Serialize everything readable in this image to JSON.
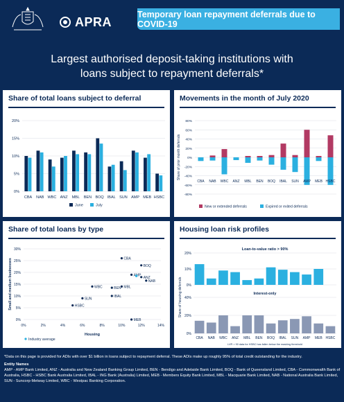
{
  "header": {
    "logo_text": "APRA",
    "banner": "Temporary loan repayment deferrals due to COVID-19"
  },
  "headline": {
    "line1": "Largest authorised deposit-taking institutions with",
    "line2": "loans subject to repayment deferrals*"
  },
  "panels": {
    "share_total": {
      "title": "Share of total loans subject to deferral"
    },
    "movements": {
      "title": "Movements in the month of July 2020"
    },
    "by_type": {
      "title": "Share of total loans by type"
    },
    "risk": {
      "title": "Housing loan risk profiles"
    }
  },
  "colors": {
    "navy": "#0b2a57",
    "cyan": "#2bb0e0",
    "rose": "#b23a63",
    "grey": "#8a98b4",
    "grid": "#d9dde6"
  },
  "chart_data": [
    {
      "type": "bar",
      "title": "Share of total loans subject to deferral",
      "categories": [
        "CBA",
        "NAB",
        "WBC",
        "ANZ",
        "MBL",
        "BEN",
        "BOQ",
        "IBAL",
        "SUN",
        "AMP",
        "MEB",
        "HSBC"
      ],
      "series": [
        {
          "name": "June",
          "values": [
            10,
            11.5,
            9,
            9.5,
            11.5,
            11,
            15,
            7,
            8.5,
            11.5,
            9.5,
            5
          ]
        },
        {
          "name": "July",
          "values": [
            9.5,
            11,
            7,
            10,
            10.5,
            10.5,
            13.5,
            7.5,
            6,
            11,
            10.5,
            4.5
          ]
        }
      ],
      "ylim": [
        0,
        20
      ],
      "yticks": [
        "0%",
        "5%",
        "10%",
        "15%",
        "20%"
      ],
      "legend": "bottom"
    },
    {
      "type": "bar",
      "title": "Movements in the month of July 2020",
      "categories": [
        "CBA",
        "NAB",
        "WBC",
        "ANZ",
        "MBL",
        "BEN",
        "BOQ",
        "IBAL",
        "SUN",
        "AMP",
        "MEB",
        "HSBC"
      ],
      "ylabel": "Share of prior month deferrals",
      "series": [
        {
          "name": "New or extended deferrals",
          "values": [
            0,
            4,
            18,
            0,
            3,
            3,
            5,
            30,
            5,
            60,
            3,
            48
          ]
        },
        {
          "name": "Expired or exited deferrals",
          "values": [
            -8,
            -7,
            -37,
            -6,
            -12,
            -7,
            -16,
            -27,
            -32,
            -60,
            -8,
            -60
          ]
        }
      ],
      "ylim": [
        -80,
        80
      ],
      "yticks": [
        "-80%",
        "-60%",
        "-40%",
        "-20%",
        "0%",
        "20%",
        "40%",
        "60%",
        "80%"
      ],
      "legend": "bottom"
    },
    {
      "type": "scatter",
      "title": "Share of total loans by type",
      "xlabel": "Housing",
      "ylabel": "Small and medium businesses",
      "xlim": [
        0,
        14
      ],
      "ylim": [
        0,
        30
      ],
      "xticks": [
        "0%",
        "2%",
        "4%",
        "6%",
        "8%",
        "10%",
        "12%",
        "14%"
      ],
      "yticks": [
        "0%",
        "5%",
        "10%",
        "15%",
        "20%",
        "25%",
        "30%"
      ],
      "points": [
        {
          "label": "CBA",
          "x": 10,
          "y": 26
        },
        {
          "label": "BOQ",
          "x": 12,
          "y": 23
        },
        {
          "label": "AMP",
          "x": 11,
          "y": 19
        },
        {
          "label": "ANZ",
          "x": 12,
          "y": 18
        },
        {
          "label": "NAB",
          "x": 12.5,
          "y": 16.5
        },
        {
          "label": "MBL",
          "x": 10,
          "y": 14
        },
        {
          "label": "WBC",
          "x": 7,
          "y": 14
        },
        {
          "label": "BEN",
          "x": 9,
          "y": 13.5
        },
        {
          "label": "IBAL",
          "x": 9,
          "y": 10
        },
        {
          "label": "SUN",
          "x": 6,
          "y": 9
        },
        {
          "label": "HSBC",
          "x": 5,
          "y": 6
        },
        {
          "label": "MEB",
          "x": 11,
          "y": 0
        }
      ],
      "industry_average": {
        "label": "Industry average",
        "x": 11.5,
        "y": 18.5
      }
    },
    {
      "type": "bar",
      "title": "Loan-to-value ratio > 90%",
      "categories": [
        "CBA",
        "NAB",
        "WBC",
        "ANZ",
        "MBL",
        "BEN",
        "BOQ",
        "IBAL",
        "SUN",
        "AMP",
        "MEB",
        "HSBC"
      ],
      "values": [
        13,
        4,
        9,
        8,
        3,
        4,
        11,
        9.5,
        8,
        6.5,
        10,
        0
      ],
      "ylim": [
        0,
        20
      ],
      "yticks": [
        "0%",
        "10%",
        "20%"
      ]
    },
    {
      "type": "bar",
      "title": "Interest-only",
      "categories": [
        "CBA",
        "NAB",
        "WBC",
        "ANZ",
        "MBL",
        "BEN",
        "BOQ",
        "IBAL",
        "SUN",
        "AMP",
        "MEB",
        "HSBC"
      ],
      "values": [
        14,
        12,
        20,
        8,
        20,
        20,
        11,
        14.5,
        16,
        19,
        11,
        8
      ],
      "ylim": [
        0,
        40
      ],
      "yticks": [
        "0%",
        "20%",
        "40%"
      ],
      "ylabel": "Share of housing deferrals",
      "note": "LVR > 90 data for HSBC has fallen below the masking threshold"
    }
  ],
  "footnote": {
    "text": "*Data on this page is provided for ADIs with over $1 billion in loans subject to repayment deferral. These ADIs make up roughly 95% of total credit outstanding for the industry.",
    "entity_title": "Entity Names",
    "entities": "AMP - AMP Bank Limited, ANZ - Australia and New Zealand Banking Group Limited, BEN - Bendigo and Adelaide Bank Limited, BOQ - Bank of Queensland Limited, CBA - Commonwealth Bank of Australia, HSBC - HSBC Bank Australia Limited, IBAL - ING Bank (Australia) Limited, MEB - Members Equity Bank Limited, MBL - Macquarie Bank Limited, NAB - National Australia Bank Limited, SUN - Suncorp-Metway Limited, WBC - Westpac Banking Corporation."
  }
}
